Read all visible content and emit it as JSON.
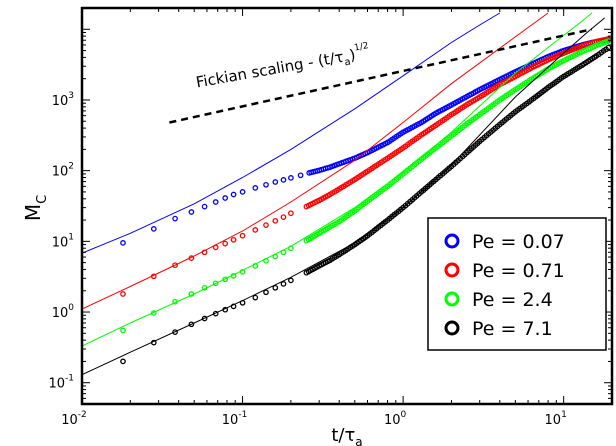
{
  "chart_data": {
    "type": "scatter",
    "xlabel": {
      "base": "t/τ",
      "sub": "a"
    },
    "ylabel": {
      "base": "M",
      "sub": "C"
    },
    "x_scale": "log",
    "y_scale": "log",
    "xlim": [
      0.01,
      20
    ],
    "ylim": [
      0.05,
      20000
    ],
    "x_ticks": [
      {
        "value": 0.01,
        "base": "10",
        "exp": "-2"
      },
      {
        "value": 0.1,
        "base": "10",
        "exp": "-1"
      },
      {
        "value": 1,
        "base": "10",
        "exp": "0"
      },
      {
        "value": 10,
        "base": "10",
        "exp": "1"
      }
    ],
    "y_ticks": [
      {
        "value": 0.1,
        "base": "10",
        "exp": "-1"
      },
      {
        "value": 1,
        "base": "10",
        "exp": "0"
      },
      {
        "value": 10,
        "base": "10",
        "exp": "1"
      },
      {
        "value": 100,
        "base": "10",
        "exp": "2"
      },
      {
        "value": 1000,
        "base": "10",
        "exp": "3"
      }
    ],
    "grid": false,
    "legend_position": "bottom-right",
    "series": [
      {
        "name": "Pe = 0.07",
        "color": "#0000ff",
        "points": [
          [
            0.018,
            9.5
          ],
          [
            0.028,
            15
          ],
          [
            0.038,
            21
          ],
          [
            0.048,
            26
          ],
          [
            0.058,
            31
          ],
          [
            0.068,
            36
          ],
          [
            0.078,
            41
          ],
          [
            0.088,
            46
          ],
          [
            0.1,
            50
          ],
          [
            0.12,
            57
          ],
          [
            0.14,
            63
          ],
          [
            0.16,
            69
          ],
          [
            0.18,
            74
          ],
          [
            0.2,
            79
          ],
          [
            0.23,
            86
          ],
          [
            0.26,
            93
          ],
          [
            0.3,
            101
          ],
          [
            0.35,
            112
          ],
          [
            0.4,
            125
          ],
          [
            0.5,
            150
          ],
          [
            0.6,
            180
          ],
          [
            0.8,
            250
          ],
          [
            1.0,
            350
          ],
          [
            1.3,
            480
          ],
          [
            1.6,
            650
          ],
          [
            2.0,
            850
          ],
          [
            2.5,
            1120
          ],
          [
            3.0,
            1400
          ],
          [
            4.0,
            1950
          ],
          [
            5.0,
            2500
          ],
          [
            6.5,
            3300
          ],
          [
            8.0,
            4100
          ],
          [
            10,
            5000
          ],
          [
            13,
            6000
          ],
          [
            16,
            6700
          ],
          [
            19,
            7100
          ]
        ],
        "fit": [
          [
            0.01,
            6.8
          ],
          [
            0.02,
            13
          ],
          [
            0.05,
            34
          ],
          [
            0.1,
            80
          ],
          [
            0.2,
            200
          ],
          [
            0.5,
            750
          ],
          [
            1,
            2200
          ],
          [
            2,
            6500
          ],
          [
            3,
            11500
          ],
          [
            4,
            17000
          ]
        ]
      },
      {
        "name": "Pe = 0.71",
        "color": "#ff0000",
        "points": [
          [
            0.018,
            1.8
          ],
          [
            0.028,
            3.2
          ],
          [
            0.038,
            4.6
          ],
          [
            0.048,
            5.8
          ],
          [
            0.058,
            7.0
          ],
          [
            0.068,
            8.2
          ],
          [
            0.078,
            9.3
          ],
          [
            0.088,
            10.5
          ],
          [
            0.1,
            12
          ],
          [
            0.12,
            14.5
          ],
          [
            0.14,
            17
          ],
          [
            0.16,
            19.5
          ],
          [
            0.18,
            22
          ],
          [
            0.2,
            25
          ],
          [
            0.25,
            31
          ],
          [
            0.3,
            38
          ],
          [
            0.35,
            46
          ],
          [
            0.4,
            55
          ],
          [
            0.5,
            75
          ],
          [
            0.6,
            98
          ],
          [
            0.8,
            150
          ],
          [
            1.0,
            210
          ],
          [
            1.3,
            320
          ],
          [
            1.6,
            440
          ],
          [
            2.0,
            620
          ],
          [
            2.5,
            860
          ],
          [
            3.0,
            1100
          ],
          [
            4.0,
            1650
          ],
          [
            5.0,
            2150
          ],
          [
            6.5,
            2950
          ],
          [
            8.0,
            3700
          ],
          [
            10,
            4600
          ],
          [
            13,
            5800
          ],
          [
            16,
            6700
          ],
          [
            19,
            7300
          ]
        ],
        "fit": [
          [
            0.01,
            1.1
          ],
          [
            0.02,
            2.3
          ],
          [
            0.05,
            6.2
          ],
          [
            0.1,
            14
          ],
          [
            0.2,
            36
          ],
          [
            0.5,
            140
          ],
          [
            1,
            480
          ],
          [
            2,
            1700
          ],
          [
            5,
            7800
          ],
          [
            8,
            17000
          ]
        ]
      },
      {
        "name": "Pe = 2.4",
        "color": "#00ff00",
        "points": [
          [
            0.018,
            0.55
          ],
          [
            0.028,
            0.97
          ],
          [
            0.038,
            1.4
          ],
          [
            0.048,
            1.8
          ],
          [
            0.058,
            2.2
          ],
          [
            0.068,
            2.55
          ],
          [
            0.078,
            2.9
          ],
          [
            0.088,
            3.25
          ],
          [
            0.1,
            3.7
          ],
          [
            0.12,
            4.5
          ],
          [
            0.14,
            5.3
          ],
          [
            0.16,
            6.1
          ],
          [
            0.18,
            7.0
          ],
          [
            0.2,
            8.0
          ],
          [
            0.25,
            10.2
          ],
          [
            0.3,
            13
          ],
          [
            0.35,
            16
          ],
          [
            0.4,
            19
          ],
          [
            0.5,
            27
          ],
          [
            0.6,
            37
          ],
          [
            0.8,
            60
          ],
          [
            1.0,
            90
          ],
          [
            1.3,
            145
          ],
          [
            1.6,
            210
          ],
          [
            2.0,
            310
          ],
          [
            2.5,
            460
          ],
          [
            3.0,
            620
          ],
          [
            4.0,
            1000
          ],
          [
            5.0,
            1400
          ],
          [
            6.5,
            2050
          ],
          [
            8.0,
            2750
          ],
          [
            10,
            3600
          ],
          [
            13,
            4800
          ],
          [
            16,
            5900
          ],
          [
            19,
            6800
          ]
        ],
        "fit": [
          [
            0.01,
            0.33
          ],
          [
            0.02,
            0.7
          ],
          [
            0.05,
            1.8
          ],
          [
            0.1,
            3.9
          ],
          [
            0.2,
            8.5
          ],
          [
            0.5,
            30
          ],
          [
            1,
            95
          ],
          [
            2,
            350
          ],
          [
            5,
            2400
          ],
          [
            10,
            8200
          ],
          [
            13,
            13000
          ],
          [
            15,
            17000
          ]
        ]
      },
      {
        "name": "Pe = 7.1",
        "color": "#000000",
        "points": [
          [
            0.018,
            0.2
          ],
          [
            0.028,
            0.37
          ],
          [
            0.038,
            0.52
          ],
          [
            0.048,
            0.67
          ],
          [
            0.058,
            0.81
          ],
          [
            0.068,
            0.95
          ],
          [
            0.078,
            1.08
          ],
          [
            0.088,
            1.2
          ],
          [
            0.1,
            1.35
          ],
          [
            0.12,
            1.6
          ],
          [
            0.14,
            1.9
          ],
          [
            0.16,
            2.2
          ],
          [
            0.18,
            2.5
          ],
          [
            0.2,
            2.8
          ],
          [
            0.25,
            3.6
          ],
          [
            0.3,
            4.5
          ],
          [
            0.35,
            5.4
          ],
          [
            0.4,
            6.5
          ],
          [
            0.5,
            9.0
          ],
          [
            0.6,
            12
          ],
          [
            0.8,
            20
          ],
          [
            1.0,
            30
          ],
          [
            1.3,
            50
          ],
          [
            1.6,
            75
          ],
          [
            2.0,
            115
          ],
          [
            2.5,
            180
          ],
          [
            3.0,
            260
          ],
          [
            4.0,
            450
          ],
          [
            5.0,
            680
          ],
          [
            6.5,
            1050
          ],
          [
            8.0,
            1500
          ],
          [
            10,
            2150
          ],
          [
            13,
            3100
          ],
          [
            16,
            4200
          ],
          [
            19,
            5500
          ]
        ],
        "fit": [
          [
            0.01,
            0.13
          ],
          [
            0.02,
            0.27
          ],
          [
            0.05,
            0.7
          ],
          [
            0.1,
            1.45
          ],
          [
            0.2,
            3.1
          ],
          [
            0.5,
            9.5
          ],
          [
            1,
            30
          ],
          [
            2,
            120
          ],
          [
            5,
            1100
          ],
          [
            10,
            4600
          ],
          [
            14,
            9000
          ],
          [
            18,
            14500
          ]
        ]
      }
    ],
    "reference_line": {
      "label": "Fickian scaling - (t/τ",
      "label_sub": "a",
      "label_tail": ")",
      "label_sup": "1/2",
      "points": [
        [
          0.035,
          480
        ],
        [
          15,
          10000
        ]
      ]
    }
  }
}
